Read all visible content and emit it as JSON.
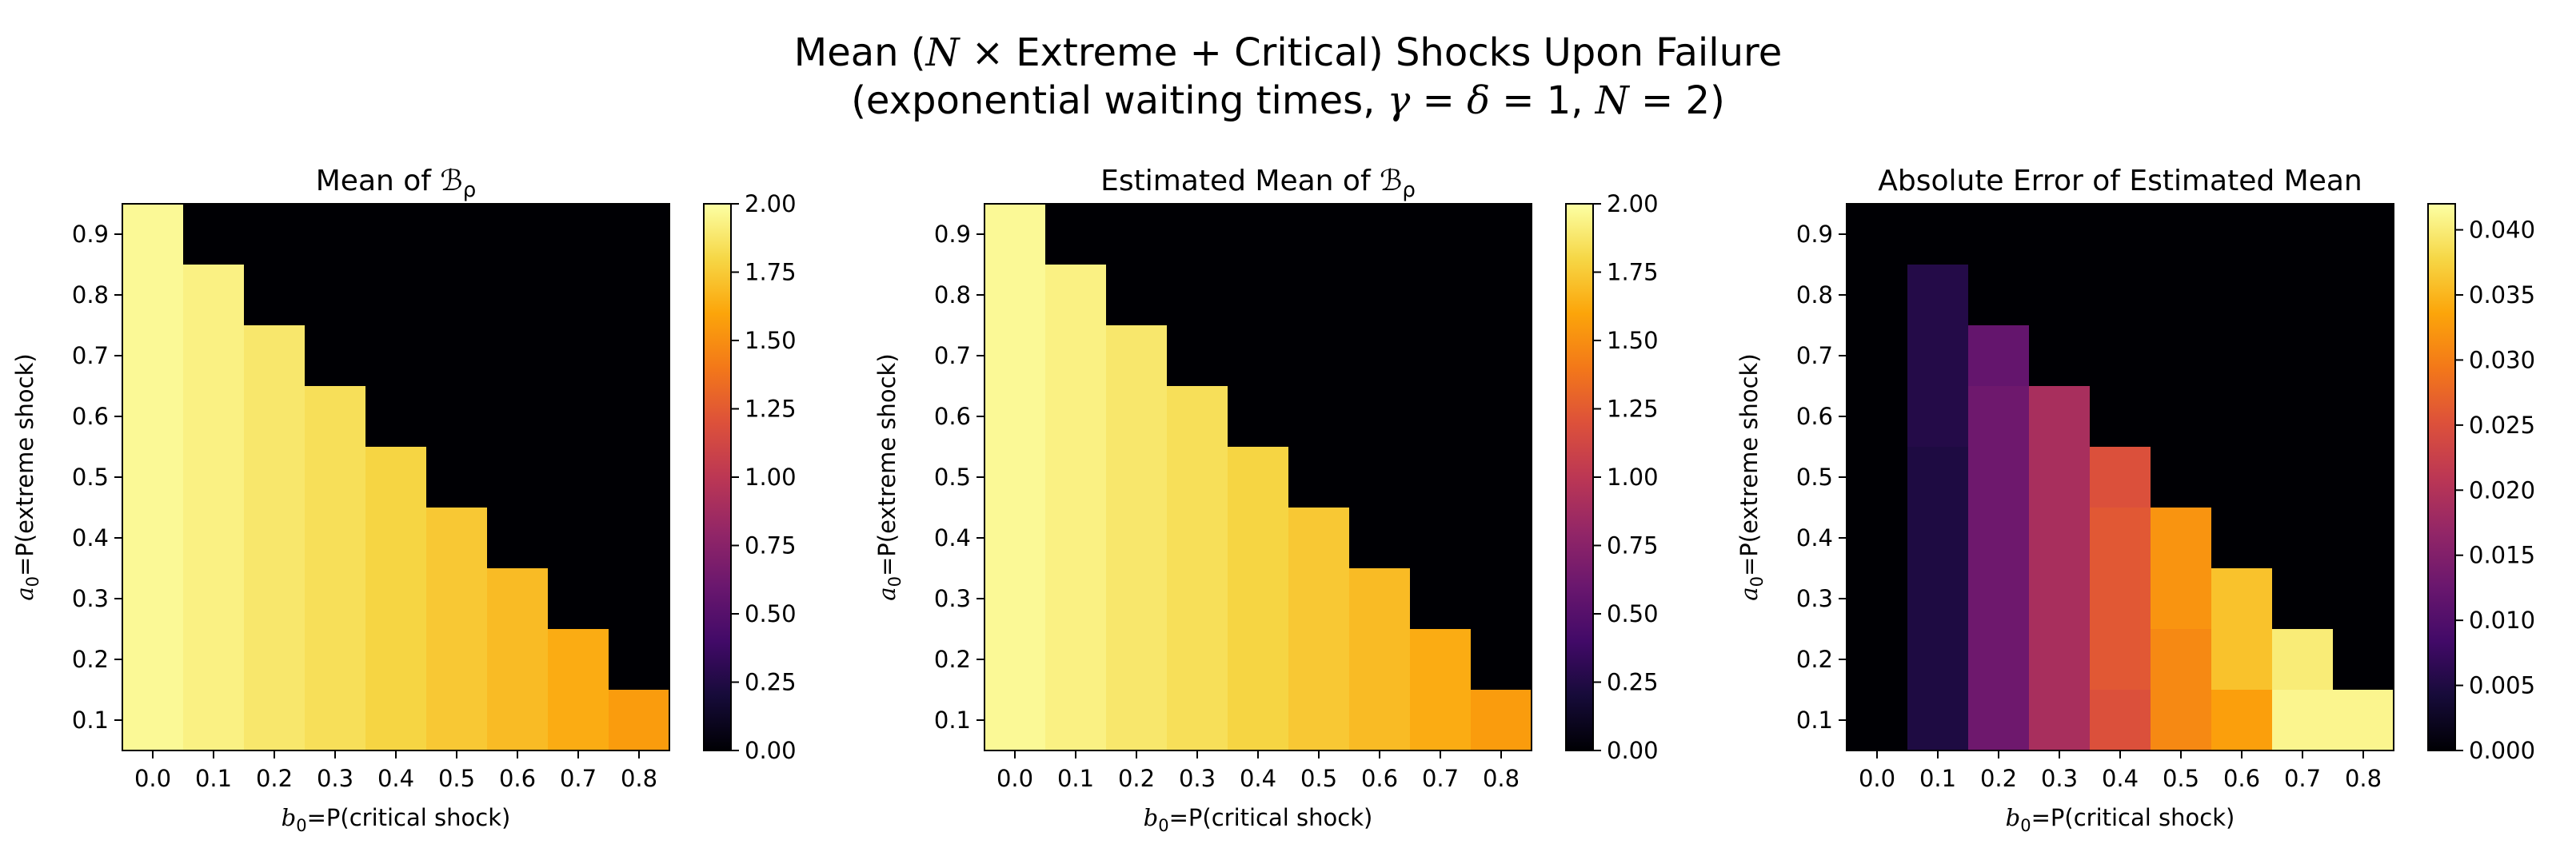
{
  "figure": {
    "title_line1": "Mean (N × Extreme + Critical) Shocks Upon Failure",
    "title_line2": "(exponential waiting times, γ = δ = 1, N = 2)"
  },
  "colors": {
    "background": "#ffffff",
    "empty_cell": "#000004",
    "colormap": "inferno"
  },
  "chart_data": [
    {
      "type": "heatmap",
      "title": "Mean of ℬρ",
      "xlabel": "b0=P(critical shock)",
      "ylabel": "a0=P(extreme shock)",
      "x": [
        0.0,
        0.1,
        0.2,
        0.3,
        0.4,
        0.5,
        0.6,
        0.7,
        0.8
      ],
      "y": [
        0.9,
        0.8,
        0.7,
        0.6,
        0.5,
        0.4,
        0.3,
        0.2,
        0.1
      ],
      "x_tick_labels": [
        "0.0",
        "0.1",
        "0.2",
        "0.3",
        "0.4",
        "0.5",
        "0.6",
        "0.7",
        "0.8"
      ],
      "y_tick_labels": [
        "0.9",
        "0.8",
        "0.7",
        "0.6",
        "0.5",
        "0.4",
        "0.3",
        "0.2",
        "0.1"
      ],
      "colorbar": {
        "min": 0.0,
        "max": 2.0,
        "ticks": [
          0.0,
          0.25,
          0.5,
          0.75,
          1.0,
          1.25,
          1.5,
          1.75,
          2.0
        ],
        "tick_labels": [
          "0.00",
          "0.25",
          "0.50",
          "0.75",
          "1.00",
          "1.25",
          "1.50",
          "1.75",
          "2.00"
        ]
      },
      "values": [
        [
          1.97,
          null,
          null,
          null,
          null,
          null,
          null,
          null,
          null
        ],
        [
          1.97,
          1.93,
          null,
          null,
          null,
          null,
          null,
          null,
          null
        ],
        [
          1.97,
          1.93,
          1.88,
          null,
          null,
          null,
          null,
          null,
          null
        ],
        [
          1.97,
          1.93,
          1.88,
          1.84,
          null,
          null,
          null,
          null,
          null
        ],
        [
          1.97,
          1.93,
          1.88,
          1.84,
          1.79,
          null,
          null,
          null,
          null
        ],
        [
          1.97,
          1.93,
          1.88,
          1.84,
          1.79,
          1.74,
          null,
          null,
          null
        ],
        [
          1.97,
          1.93,
          1.88,
          1.84,
          1.79,
          1.74,
          1.69,
          null,
          null
        ],
        [
          1.97,
          1.93,
          1.88,
          1.84,
          1.79,
          1.74,
          1.69,
          1.63,
          null
        ],
        [
          1.97,
          1.93,
          1.88,
          1.84,
          1.79,
          1.74,
          1.69,
          1.63,
          1.56
        ]
      ]
    },
    {
      "type": "heatmap",
      "title": "Estimated Mean of ℬρ",
      "xlabel": "b0=P(critical shock)",
      "ylabel": "a0=P(extreme shock)",
      "x": [
        0.0,
        0.1,
        0.2,
        0.3,
        0.4,
        0.5,
        0.6,
        0.7,
        0.8
      ],
      "y": [
        0.9,
        0.8,
        0.7,
        0.6,
        0.5,
        0.4,
        0.3,
        0.2,
        0.1
      ],
      "x_tick_labels": [
        "0.0",
        "0.1",
        "0.2",
        "0.3",
        "0.4",
        "0.5",
        "0.6",
        "0.7",
        "0.8"
      ],
      "y_tick_labels": [
        "0.9",
        "0.8",
        "0.7",
        "0.6",
        "0.5",
        "0.4",
        "0.3",
        "0.2",
        "0.1"
      ],
      "colorbar": {
        "min": 0.0,
        "max": 2.0,
        "ticks": [
          0.0,
          0.25,
          0.5,
          0.75,
          1.0,
          1.25,
          1.5,
          1.75,
          2.0
        ],
        "tick_labels": [
          "0.00",
          "0.25",
          "0.50",
          "0.75",
          "1.00",
          "1.25",
          "1.50",
          "1.75",
          "2.00"
        ]
      },
      "values": [
        [
          1.97,
          null,
          null,
          null,
          null,
          null,
          null,
          null,
          null
        ],
        [
          1.97,
          1.93,
          null,
          null,
          null,
          null,
          null,
          null,
          null
        ],
        [
          1.97,
          1.93,
          1.88,
          null,
          null,
          null,
          null,
          null,
          null
        ],
        [
          1.97,
          1.93,
          1.88,
          1.84,
          null,
          null,
          null,
          null,
          null
        ],
        [
          1.97,
          1.93,
          1.88,
          1.84,
          1.79,
          null,
          null,
          null,
          null
        ],
        [
          1.97,
          1.93,
          1.88,
          1.84,
          1.79,
          1.74,
          null,
          null,
          null
        ],
        [
          1.97,
          1.93,
          1.88,
          1.84,
          1.79,
          1.74,
          1.69,
          null,
          null
        ],
        [
          1.97,
          1.93,
          1.88,
          1.84,
          1.79,
          1.74,
          1.69,
          1.63,
          null
        ],
        [
          1.97,
          1.93,
          1.88,
          1.84,
          1.79,
          1.74,
          1.69,
          1.63,
          1.56
        ]
      ]
    },
    {
      "type": "heatmap",
      "title": "Absolute Error of Estimated Mean",
      "xlabel": "b0=P(critical shock)",
      "ylabel": "a0=P(extreme shock)",
      "x": [
        0.0,
        0.1,
        0.2,
        0.3,
        0.4,
        0.5,
        0.6,
        0.7,
        0.8
      ],
      "y": [
        0.9,
        0.8,
        0.7,
        0.6,
        0.5,
        0.4,
        0.3,
        0.2,
        0.1
      ],
      "x_tick_labels": [
        "0.0",
        "0.1",
        "0.2",
        "0.3",
        "0.4",
        "0.5",
        "0.6",
        "0.7",
        "0.8"
      ],
      "y_tick_labels": [
        "0.9",
        "0.8",
        "0.7",
        "0.6",
        "0.5",
        "0.4",
        "0.3",
        "0.2",
        "0.1"
      ],
      "colorbar": {
        "min": 0.0,
        "max": 0.042,
        "ticks": [
          0.0,
          0.005,
          0.01,
          0.015,
          0.02,
          0.025,
          0.03,
          0.035,
          0.04
        ],
        "tick_labels": [
          "0.000",
          "0.005",
          "0.010",
          "0.015",
          "0.020",
          "0.025",
          "0.030",
          "0.035",
          "0.040"
        ]
      },
      "values": [
        [
          0.0,
          null,
          null,
          null,
          null,
          null,
          null,
          null,
          null
        ],
        [
          0.0,
          0.0055,
          null,
          null,
          null,
          null,
          null,
          null,
          null
        ],
        [
          0.0,
          0.0055,
          0.012,
          null,
          null,
          null,
          null,
          null,
          null
        ],
        [
          0.0,
          0.0055,
          0.013,
          0.019,
          null,
          null,
          null,
          null,
          null
        ],
        [
          0.0,
          0.005,
          0.013,
          0.019,
          0.025,
          null,
          null,
          null,
          null
        ],
        [
          0.0,
          0.005,
          0.013,
          0.019,
          0.026,
          0.032,
          null,
          null,
          null
        ],
        [
          0.0,
          0.005,
          0.013,
          0.019,
          0.026,
          0.032,
          0.036,
          null,
          null
        ],
        [
          0.0,
          0.005,
          0.013,
          0.019,
          0.026,
          0.031,
          0.036,
          0.04,
          null
        ],
        [
          0.0,
          0.005,
          0.013,
          0.019,
          0.025,
          0.031,
          0.033,
          0.041,
          0.041
        ]
      ]
    }
  ]
}
